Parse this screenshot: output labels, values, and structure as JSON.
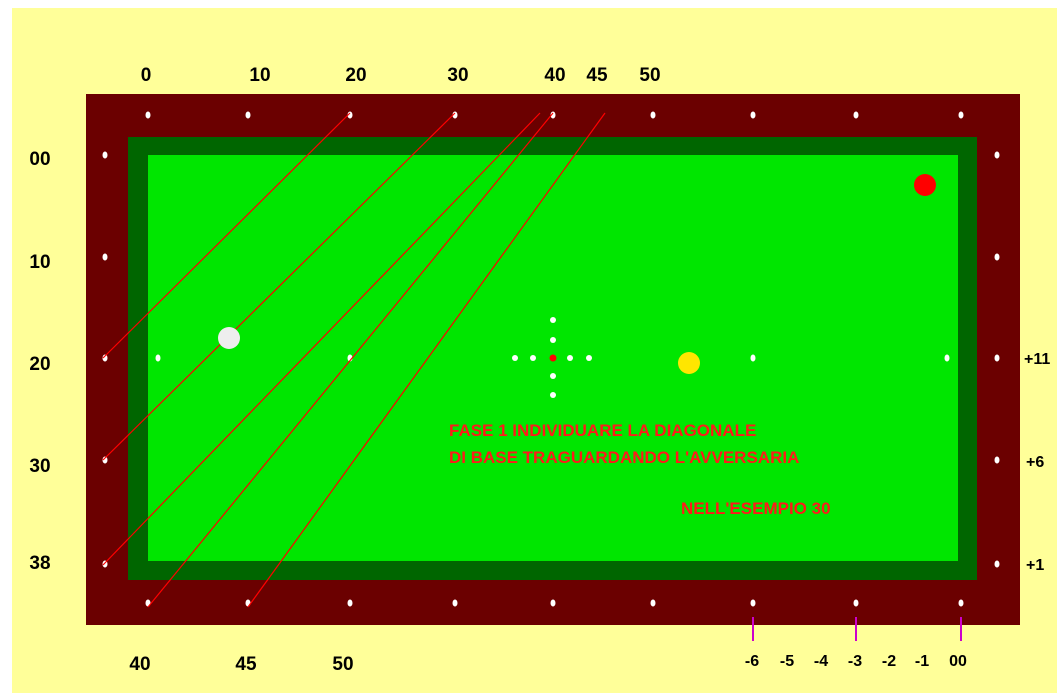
{
  "colors": {
    "background": "#ffff99",
    "rail": "#6b0000",
    "cushion": "#006600",
    "cloth": "#00e600",
    "diamond": "#ffffff",
    "line": "#ff0000",
    "tick": "#cc00cc",
    "cue_ball": "#eeeeee",
    "object_ball": "#ffe600",
    "red_ball": "#ff0000"
  },
  "top_labels": [
    "0",
    "10",
    "20",
    "30",
    "40",
    "45",
    "50"
  ],
  "left_labels": [
    "00",
    "10",
    "20",
    "30",
    "38"
  ],
  "right_labels": [
    "+11",
    "+6",
    "+1"
  ],
  "bottom_left_labels": [
    "40",
    "45",
    "50"
  ],
  "bottom_right_labels": [
    "-6",
    "-5",
    "-4",
    "-3",
    "-2",
    "-1",
    "00"
  ],
  "note": {
    "line1": "FASE 1 INDIVIDUARE  LA DIAGONALE",
    "line2": "DI BASE  TRAGUARDANDO L'AVVERSARIA",
    "line3": "NELL'ESEMPIO 30"
  },
  "balls": [
    {
      "name": "cue-ball",
      "color": "white"
    },
    {
      "name": "object-ball",
      "color": "yellow"
    },
    {
      "name": "red-ball",
      "color": "red"
    }
  ]
}
